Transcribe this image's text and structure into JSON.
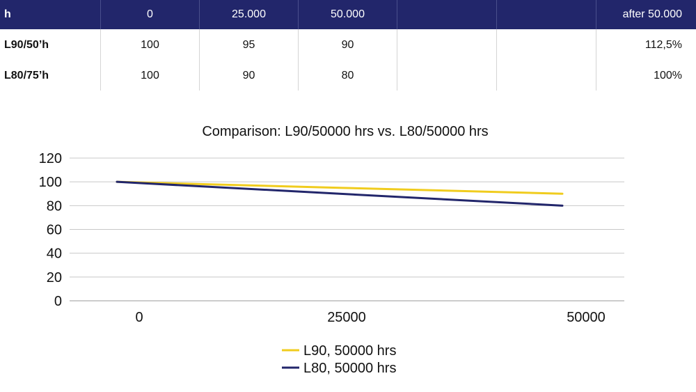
{
  "table": {
    "header": [
      "h",
      "0",
      "25.000",
      "50.000",
      "",
      "",
      "after 50.000"
    ],
    "rows": [
      [
        "L90/50’h",
        "100",
        "95",
        "90",
        "",
        "",
        "112,5%"
      ],
      [
        "L80/75’h",
        "100",
        "90",
        "80",
        "",
        "",
        "100%"
      ]
    ]
  },
  "chart_data": {
    "type": "line",
    "title": "Comparison: L90/50000 hrs vs. L80/50000 hrs",
    "x": [
      0,
      25000,
      50000
    ],
    "x_tick_labels": [
      "0",
      "25000",
      "50000"
    ],
    "y_tick_labels": [
      "0",
      "20",
      "40",
      "60",
      "80",
      "100",
      "120"
    ],
    "ylim": [
      0,
      120
    ],
    "grid": true,
    "legend_position": "bottom",
    "series": [
      {
        "name": "L90, 50000 hrs",
        "values": [
          100,
          95,
          90
        ],
        "color": "#f0cc1e"
      },
      {
        "name": "L80, 50000 hrs",
        "values": [
          100,
          90,
          80
        ],
        "color": "#22266b"
      }
    ]
  }
}
